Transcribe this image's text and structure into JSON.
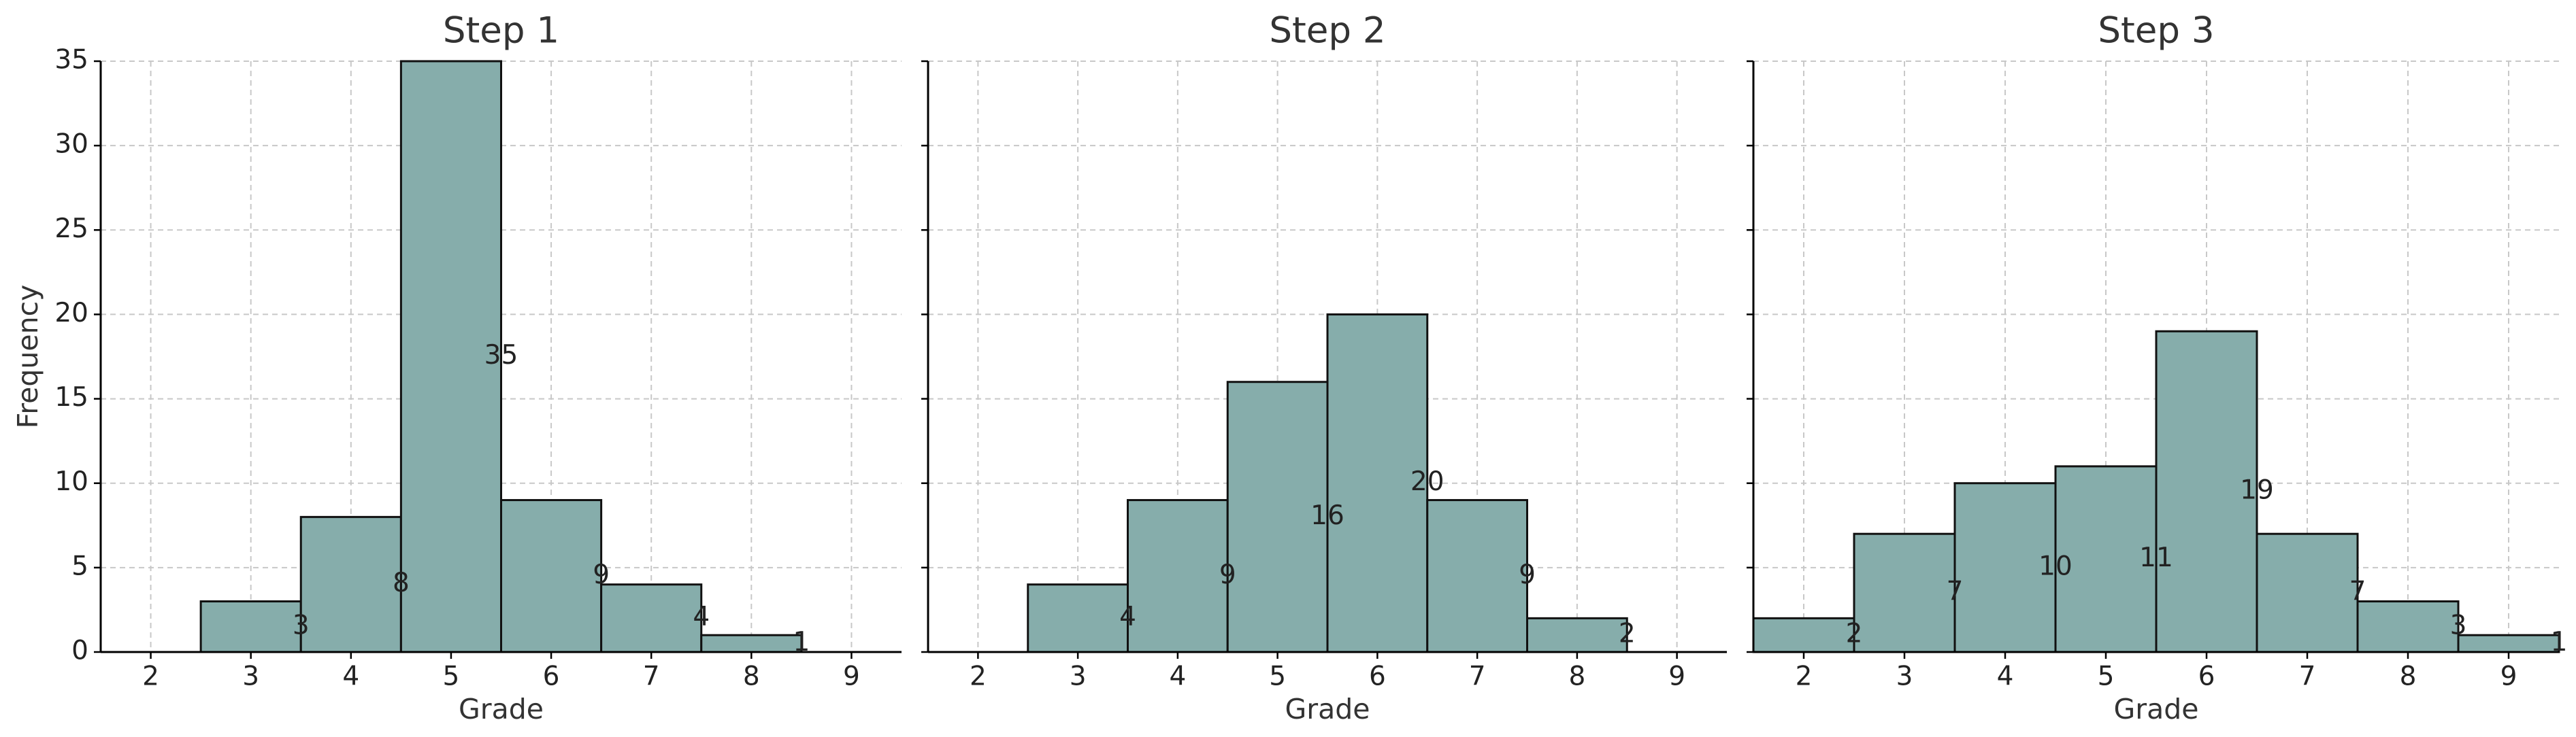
{
  "chart_data": [
    {
      "type": "histogram",
      "title": "Step 1",
      "xlabel": "Grade",
      "ylabel": "Frequency",
      "bins": [
        2.5,
        3.5,
        4.5,
        5.5,
        6.5,
        7.5,
        8.5
      ],
      "values": [
        3,
        8,
        35,
        9,
        4,
        1
      ],
      "color": "#86adab",
      "xlim": [
        1.5,
        9.5
      ],
      "ylim": [
        0,
        35
      ],
      "xticks": [
        2,
        3,
        4,
        5,
        6,
        7,
        8,
        9
      ],
      "yticks": [
        0,
        5,
        10,
        15,
        20,
        25,
        30,
        35
      ],
      "ytick_labels": true,
      "grid": true
    },
    {
      "type": "histogram",
      "title": "Step 2",
      "xlabel": "Grade",
      "bins": [
        2.5,
        3.5,
        4.5,
        5.5,
        6.5,
        7.5,
        8.5
      ],
      "values": [
        4,
        9,
        16,
        20,
        9,
        2
      ],
      "color": "#86adab",
      "xlim": [
        1.5,
        9.5
      ],
      "ylim": [
        0,
        35
      ],
      "xticks": [
        2,
        3,
        4,
        5,
        6,
        7,
        8,
        9
      ],
      "yticks": [
        0,
        5,
        10,
        15,
        20,
        25,
        30,
        35
      ],
      "ytick_labels": false,
      "grid": true
    },
    {
      "type": "histogram",
      "title": "Step 3",
      "xlabel": "Grade",
      "bins": [
        1.5,
        2.5,
        3.5,
        4.5,
        5.5,
        6.5,
        7.5,
        8.5,
        9.5
      ],
      "values": [
        2,
        7,
        10,
        11,
        19,
        7,
        3,
        1
      ],
      "color": "#86adab",
      "xlim": [
        1.5,
        9.5
      ],
      "ylim": [
        0,
        35
      ],
      "xticks": [
        2,
        3,
        4,
        5,
        6,
        7,
        8,
        9
      ],
      "yticks": [
        0,
        5,
        10,
        15,
        20,
        25,
        30,
        35
      ],
      "ytick_labels": false,
      "grid": true
    }
  ]
}
